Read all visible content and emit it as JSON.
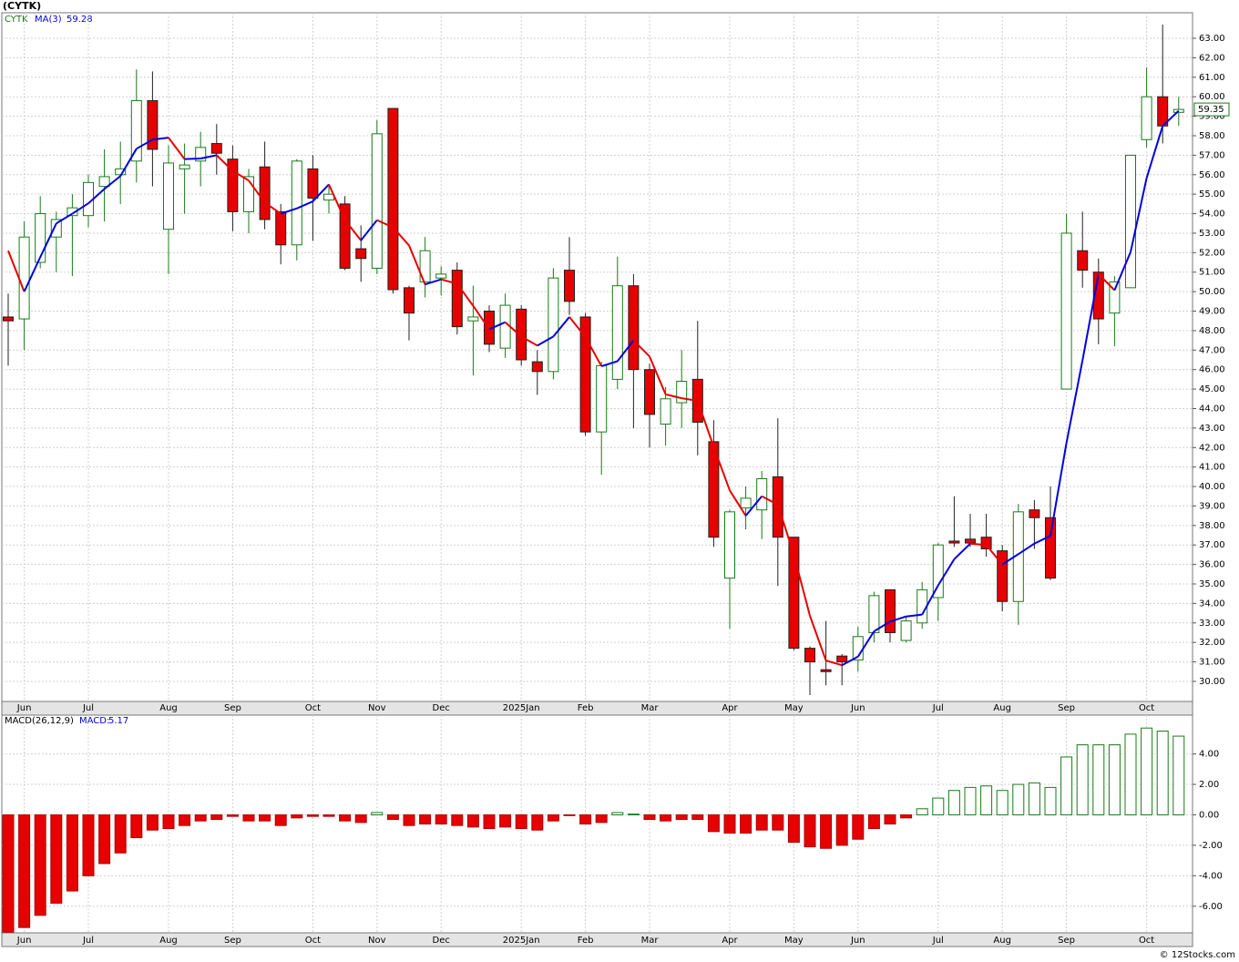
{
  "chart_data": [
    {
      "type": "candlestick",
      "title": "(CYTK)",
      "series_name": "CYTK",
      "categories": [
        null,
        "Jun",
        null,
        null,
        null,
        "Jul",
        null,
        null,
        null,
        null,
        "Aug",
        null,
        null,
        null,
        "Sep",
        null,
        null,
        null,
        null,
        "Oct",
        null,
        null,
        null,
        "Nov",
        null,
        null,
        null,
        "Dec",
        null,
        null,
        null,
        null,
        "2025Jan",
        null,
        null,
        null,
        "Feb",
        null,
        null,
        null,
        "Mar",
        null,
        null,
        null,
        null,
        "Apr",
        null,
        null,
        null,
        "May",
        null,
        null,
        null,
        "Jun",
        null,
        null,
        null,
        null,
        "Jul",
        null,
        null,
        null,
        "Aug",
        null,
        null,
        null,
        "Sep",
        null,
        null,
        null,
        null,
        "Oct",
        null,
        null
      ],
      "open": [
        48.7,
        48.6,
        51.5,
        52.8,
        53.9,
        53.9,
        55.4,
        56.0,
        56.7,
        59.8,
        53.2,
        56.3,
        56.7,
        57.6,
        56.8,
        54.1,
        56.4,
        54.1,
        52.4,
        56.3,
        54.7,
        54.5,
        52.2,
        51.2,
        59.4,
        50.2,
        50.5,
        50.7,
        51.1,
        48.5,
        49.0,
        47.1,
        49.1,
        46.4,
        45.9,
        51.1,
        48.7,
        42.8,
        45.5,
        50.3,
        46.0,
        43.2,
        44.3,
        45.5,
        42.3,
        35.3,
        38.9,
        38.8,
        40.5,
        37.4,
        31.7,
        30.6,
        31.3,
        31.1,
        32.5,
        34.7,
        32.1,
        33.0,
        34.3,
        37.2,
        37.3,
        37.4,
        36.7,
        34.1,
        38.8,
        38.4,
        45.0,
        52.1,
        51.0,
        48.9,
        50.2,
        57.8,
        60.0,
        59.2
      ],
      "high": [
        49.9,
        53.6,
        54.9,
        54.1,
        55.0,
        56.0,
        57.3,
        57.7,
        61.4,
        61.3,
        57.5,
        57.6,
        58.2,
        58.6,
        57.5,
        56.3,
        57.7,
        54.5,
        56.8,
        57.0,
        55.4,
        54.9,
        53.4,
        58.8,
        59.4,
        50.3,
        52.8,
        51.3,
        51.5,
        50.3,
        49.3,
        49.9,
        49.3,
        47.0,
        51.2,
        52.8,
        48.9,
        46.4,
        51.8,
        50.9,
        46.3,
        45.1,
        47.0,
        48.5,
        43.4,
        38.8,
        40.0,
        40.8,
        43.5,
        37.4,
        31.8,
        33.1,
        31.4,
        32.8,
        34.6,
        34.7,
        33.3,
        35.1,
        37.1,
        39.5,
        38.6,
        38.6,
        37.0,
        39.1,
        39.3,
        40.0,
        54.0,
        54.1,
        51.7,
        50.8,
        57.0,
        61.5,
        63.7,
        60.0
      ],
      "low": [
        46.2,
        47.0,
        51.2,
        51.0,
        50.8,
        53.3,
        53.6,
        54.5,
        55.6,
        55.4,
        50.9,
        54.0,
        55.4,
        56.0,
        53.1,
        53.0,
        53.2,
        51.4,
        51.6,
        52.6,
        54.0,
        51.1,
        50.5,
        50.9,
        49.9,
        47.5,
        49.7,
        49.8,
        47.8,
        45.7,
        46.9,
        46.6,
        46.2,
        44.7,
        45.5,
        48.8,
        42.6,
        40.6,
        45.0,
        43.0,
        42.0,
        42.1,
        43.0,
        41.6,
        36.9,
        32.7,
        37.8,
        37.3,
        34.9,
        31.6,
        29.3,
        29.8,
        29.8,
        30.5,
        32.0,
        32.0,
        32.0,
        32.7,
        33.1,
        36.9,
        36.9,
        36.4,
        33.6,
        32.9,
        36.8,
        35.2,
        45.0,
        50.2,
        47.3,
        47.2,
        50.2,
        57.4,
        57.6,
        58.5
      ],
      "close": [
        48.5,
        52.8,
        54.0,
        53.7,
        54.3,
        55.6,
        55.9,
        56.3,
        59.8,
        57.3,
        56.6,
        56.5,
        57.4,
        57.1,
        54.1,
        55.9,
        53.7,
        52.4,
        56.7,
        54.8,
        55.0,
        51.2,
        51.7,
        58.1,
        50.1,
        48.9,
        52.1,
        50.9,
        48.2,
        48.7,
        47.3,
        49.3,
        46.5,
        45.9,
        50.7,
        49.5,
        42.8,
        46.2,
        50.3,
        46.0,
        43.7,
        44.5,
        45.4,
        43.3,
        37.4,
        38.7,
        39.4,
        40.4,
        37.4,
        31.7,
        31.0,
        30.5,
        31.0,
        32.3,
        34.4,
        32.5,
        33.1,
        34.7,
        37.0,
        37.1,
        37.1,
        36.8,
        34.1,
        38.7,
        38.4,
        35.3,
        53.0,
        51.1,
        48.6,
        50.5,
        57.0,
        60.0,
        58.5,
        59.35
      ],
      "up_color": "#1a7a1a",
      "down_color": "#e60000",
      "ma": {
        "name": "MA(3)",
        "up_color": "#0000dd",
        "down_color": "#e60000",
        "values": [
          52.1,
          50.0,
          51.77,
          53.5,
          54.0,
          54.53,
          55.27,
          55.93,
          57.33,
          57.8,
          57.9,
          56.8,
          56.83,
          57.0,
          56.2,
          55.7,
          54.57,
          54.0,
          54.27,
          54.63,
          55.5,
          53.67,
          52.63,
          53.67,
          53.3,
          52.37,
          50.37,
          50.63,
          50.4,
          49.27,
          48.07,
          48.43,
          47.7,
          47.23,
          47.7,
          48.7,
          47.67,
          46.17,
          46.43,
          47.5,
          46.67,
          44.73,
          44.53,
          44.4,
          42.03,
          39.8,
          38.5,
          39.5,
          39.07,
          36.5,
          33.37,
          31.07,
          30.83,
          31.27,
          32.57,
          33.07,
          33.33,
          33.43,
          34.93,
          36.27,
          37.07,
          37.0,
          36.0,
          36.53,
          37.07,
          37.47,
          42.23,
          46.47,
          50.9,
          50.07,
          52.03,
          55.83,
          58.5,
          59.28
        ]
      },
      "ylim": [
        28.97,
        64.31
      ],
      "yticks": [
        {
          "value": 30,
          "label": "30.00"
        },
        {
          "value": 31,
          "label": "31.00"
        },
        {
          "value": 32,
          "label": "32.00"
        },
        {
          "value": 33,
          "label": "33.00"
        },
        {
          "value": 34,
          "label": "34.00"
        },
        {
          "value": 35,
          "label": "35.00"
        },
        {
          "value": 36,
          "label": "36.00"
        },
        {
          "value": 37,
          "label": "37.00"
        },
        {
          "value": 38,
          "label": "38.00"
        },
        {
          "value": 39,
          "label": "39.00"
        },
        {
          "value": 40,
          "label": "40.00"
        },
        {
          "value": 41,
          "label": "41.00"
        },
        {
          "value": 42,
          "label": "42.00"
        },
        {
          "value": 43,
          "label": "43.00"
        },
        {
          "value": 44,
          "label": "44.00"
        },
        {
          "value": 45,
          "label": "45.00"
        },
        {
          "value": 46,
          "label": "46.00"
        },
        {
          "value": 47,
          "label": "47.00"
        },
        {
          "value": 48,
          "label": "48.00"
        },
        {
          "value": 49,
          "label": "49.00"
        },
        {
          "value": 50,
          "label": "50.00"
        },
        {
          "value": 51,
          "label": "51.00"
        },
        {
          "value": 52,
          "label": "52.00"
        },
        {
          "value": 53,
          "label": "53.00"
        },
        {
          "value": 54,
          "label": "54.00"
        },
        {
          "value": 55,
          "label": "55.00"
        },
        {
          "value": 56,
          "label": "56.00"
        },
        {
          "value": 57,
          "label": "57.00"
        },
        {
          "value": 58,
          "label": "58.00"
        },
        {
          "value": 59,
          "label": "59.00"
        },
        {
          "value": 60,
          "label": "60.00"
        },
        {
          "value": 61,
          "label": "61.00"
        },
        {
          "value": 62,
          "label": "62.00"
        },
        {
          "value": 63,
          "label": "63.00"
        }
      ],
      "grid": true
    },
    {
      "type": "bar",
      "name": "MACD(26,12,9)",
      "value_name": "MACD:",
      "values": [
        -7.7,
        -7.4,
        -6.6,
        -5.8,
        -5.0,
        -4.0,
        -3.2,
        -2.5,
        -1.5,
        -1.0,
        -0.9,
        -0.7,
        -0.4,
        -0.3,
        -0.1,
        -0.4,
        -0.4,
        -0.7,
        -0.2,
        -0.1,
        -0.1,
        -0.4,
        -0.5,
        0.15,
        -0.3,
        -0.7,
        -0.6,
        -0.6,
        -0.7,
        -0.8,
        -0.9,
        -0.8,
        -0.9,
        -1.0,
        -0.4,
        -0.05,
        -0.6,
        -0.5,
        0.15,
        0.05,
        -0.3,
        -0.4,
        -0.3,
        -0.3,
        -1.1,
        -1.2,
        -1.2,
        -1.0,
        -1.0,
        -1.8,
        -2.1,
        -2.2,
        -2.0,
        -1.6,
        -0.9,
        -0.6,
        -0.2,
        0.4,
        1.1,
        1.6,
        1.8,
        1.9,
        1.6,
        2.0,
        2.1,
        1.8,
        3.8,
        4.6,
        4.6,
        4.6,
        5.3,
        5.7,
        5.5,
        5.17
      ],
      "pos_color": "#1a7a1a",
      "neg_color": "#e60000",
      "ylim": [
        -7.75,
        6.55
      ],
      "yticks": [
        {
          "value": -6,
          "label": "-6.00"
        },
        {
          "value": -4,
          "label": "-4.00"
        },
        {
          "value": -2,
          "label": "-2.00"
        },
        {
          "value": 0,
          "label": "0.00"
        },
        {
          "value": 2,
          "label": "2.00"
        },
        {
          "value": 4,
          "label": "4.00"
        }
      ],
      "grid": true
    }
  ],
  "footer": "© 12Stocks.com"
}
